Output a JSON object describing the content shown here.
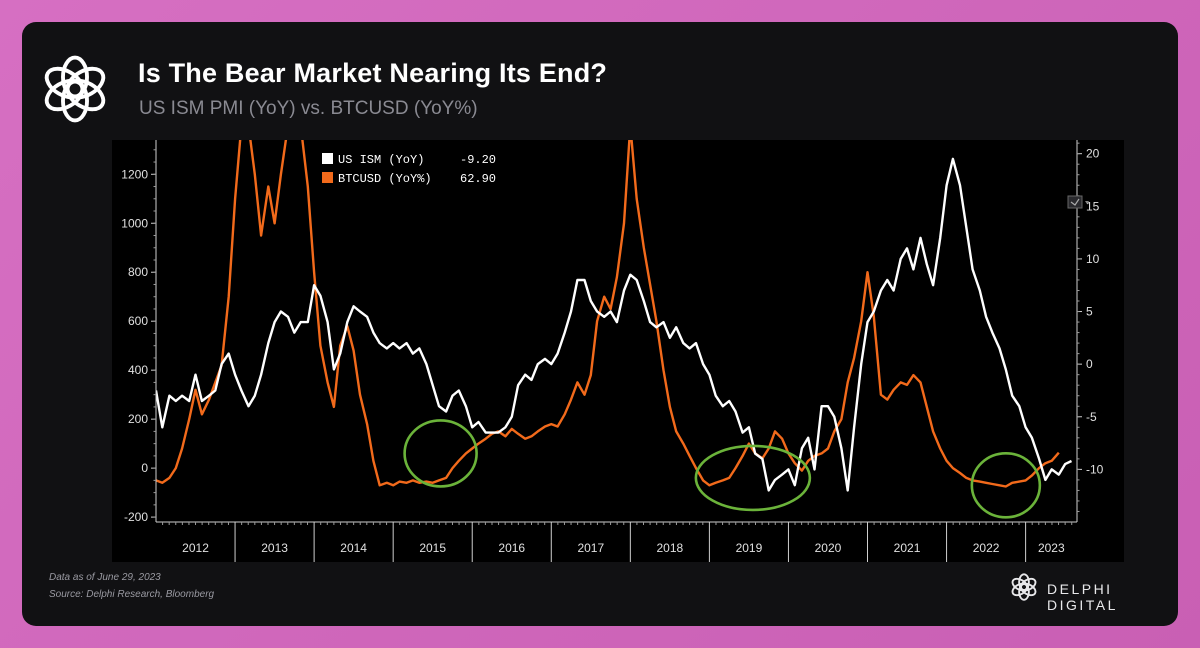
{
  "header": {
    "title": "Is The Bear Market Nearing Its End?",
    "subtitle": "US ISM PMI (YoY) vs. BTCUSD (YoY%)",
    "logo_icon": "delphi-flower-logo-icon"
  },
  "footer": {
    "note_date": "Data as of June 29, 2023",
    "note_source": "Source: Delphi Research, Bloomberg",
    "brand_name": "DELPHI DIGITAL",
    "brand_icon": "delphi-flower-logo-icon"
  },
  "colors": {
    "ism": "#ffffff",
    "btc": "#f26a1b",
    "highlight": "#6bb33a",
    "plot_bg": "#000000",
    "card_bg": "#111113",
    "page_bg": "#d66fc2"
  },
  "chart_data": {
    "type": "line",
    "x_labels": [
      "2012",
      "2013",
      "2014",
      "2015",
      "2016",
      "2017",
      "2018",
      "2019",
      "2020",
      "2021",
      "2022",
      "2023"
    ],
    "left_axis": {
      "ticks": [
        -200,
        0,
        200,
        400,
        600,
        800,
        1000,
        1200
      ],
      "range": [
        -220,
        1340
      ]
    },
    "right_axis": {
      "ticks": [
        -10,
        -5,
        0,
        5,
        10,
        15,
        20
      ],
      "range": [
        -15,
        21.3
      ]
    },
    "legend": {
      "placement": "top-left",
      "items": [
        {
          "label": "US ISM (YoY)",
          "value": "-9.20",
          "color": "#ffffff"
        },
        {
          "label": "BTCUSD (YoY%)",
          "value": "62.90",
          "color": "#f26a1b"
        }
      ]
    },
    "grid": false,
    "series": [
      {
        "name": "BTCUSD (YoY%)",
        "axis": "left",
        "points": [
          [
            2012.0,
            -50
          ],
          [
            2012.08,
            -60
          ],
          [
            2012.17,
            -40
          ],
          [
            2012.25,
            0
          ],
          [
            2012.33,
            80
          ],
          [
            2012.42,
            200
          ],
          [
            2012.5,
            320
          ],
          [
            2012.58,
            220
          ],
          [
            2012.67,
            280
          ],
          [
            2012.75,
            350
          ],
          [
            2012.83,
            420
          ],
          [
            2012.92,
            700
          ],
          [
            2013.0,
            1100
          ],
          [
            2013.08,
            1400
          ],
          [
            2013.17,
            1400
          ],
          [
            2013.25,
            1200
          ],
          [
            2013.33,
            950
          ],
          [
            2013.42,
            1150
          ],
          [
            2013.5,
            1000
          ],
          [
            2013.58,
            1200
          ],
          [
            2013.67,
            1400
          ],
          [
            2013.75,
            1400
          ],
          [
            2013.83,
            1400
          ],
          [
            2013.92,
            1150
          ],
          [
            2014.0,
            800
          ],
          [
            2014.08,
            500
          ],
          [
            2014.17,
            350
          ],
          [
            2014.25,
            250
          ],
          [
            2014.33,
            500
          ],
          [
            2014.42,
            580
          ],
          [
            2014.5,
            480
          ],
          [
            2014.58,
            300
          ],
          [
            2014.67,
            180
          ],
          [
            2014.75,
            30
          ],
          [
            2014.83,
            -70
          ],
          [
            2014.92,
            -60
          ],
          [
            2015.0,
            -70
          ],
          [
            2015.08,
            -55
          ],
          [
            2015.17,
            -60
          ],
          [
            2015.25,
            -50
          ],
          [
            2015.33,
            -60
          ],
          [
            2015.42,
            -55
          ],
          [
            2015.5,
            -60
          ],
          [
            2015.58,
            -50
          ],
          [
            2015.67,
            -40
          ],
          [
            2015.75,
            0
          ],
          [
            2015.83,
            30
          ],
          [
            2015.92,
            60
          ],
          [
            2016.0,
            80
          ],
          [
            2016.08,
            100
          ],
          [
            2016.17,
            120
          ],
          [
            2016.25,
            140
          ],
          [
            2016.33,
            150
          ],
          [
            2016.42,
            130
          ],
          [
            2016.5,
            160
          ],
          [
            2016.58,
            140
          ],
          [
            2016.67,
            120
          ],
          [
            2016.75,
            130
          ],
          [
            2016.83,
            150
          ],
          [
            2016.92,
            170
          ],
          [
            2017.0,
            180
          ],
          [
            2017.08,
            170
          ],
          [
            2017.17,
            220
          ],
          [
            2017.25,
            280
          ],
          [
            2017.33,
            350
          ],
          [
            2017.42,
            300
          ],
          [
            2017.5,
            380
          ],
          [
            2017.58,
            600
          ],
          [
            2017.67,
            700
          ],
          [
            2017.75,
            650
          ],
          [
            2017.83,
            780
          ],
          [
            2017.92,
            1000
          ],
          [
            2018.0,
            1400
          ],
          [
            2018.08,
            1100
          ],
          [
            2018.17,
            900
          ],
          [
            2018.25,
            750
          ],
          [
            2018.33,
            600
          ],
          [
            2018.42,
            400
          ],
          [
            2018.5,
            250
          ],
          [
            2018.58,
            150
          ],
          [
            2018.67,
            100
          ],
          [
            2018.75,
            50
          ],
          [
            2018.83,
            0
          ],
          [
            2018.92,
            -50
          ],
          [
            2019.0,
            -70
          ],
          [
            2019.08,
            -60
          ],
          [
            2019.17,
            -50
          ],
          [
            2019.25,
            -40
          ],
          [
            2019.33,
            0
          ],
          [
            2019.42,
            50
          ],
          [
            2019.5,
            100
          ],
          [
            2019.58,
            60
          ],
          [
            2019.67,
            40
          ],
          [
            2019.75,
            80
          ],
          [
            2019.83,
            150
          ],
          [
            2019.92,
            120
          ],
          [
            2020.0,
            60
          ],
          [
            2020.08,
            20
          ],
          [
            2020.17,
            -10
          ],
          [
            2020.25,
            30
          ],
          [
            2020.33,
            50
          ],
          [
            2020.42,
            60
          ],
          [
            2020.5,
            80
          ],
          [
            2020.58,
            150
          ],
          [
            2020.67,
            200
          ],
          [
            2020.75,
            350
          ],
          [
            2020.83,
            450
          ],
          [
            2020.92,
            600
          ],
          [
            2021.0,
            800
          ],
          [
            2021.08,
            620
          ],
          [
            2021.17,
            300
          ],
          [
            2021.25,
            280
          ],
          [
            2021.33,
            320
          ],
          [
            2021.42,
            350
          ],
          [
            2021.5,
            340
          ],
          [
            2021.58,
            380
          ],
          [
            2021.67,
            350
          ],
          [
            2021.75,
            250
          ],
          [
            2021.83,
            150
          ],
          [
            2021.92,
            80
          ],
          [
            2022.0,
            30
          ],
          [
            2022.08,
            0
          ],
          [
            2022.17,
            -20
          ],
          [
            2022.25,
            -40
          ],
          [
            2022.33,
            -50
          ],
          [
            2022.42,
            -55
          ],
          [
            2022.5,
            -60
          ],
          [
            2022.58,
            -65
          ],
          [
            2022.67,
            -70
          ],
          [
            2022.75,
            -75
          ],
          [
            2022.83,
            -60
          ],
          [
            2022.92,
            -55
          ],
          [
            2023.0,
            -50
          ],
          [
            2023.08,
            -30
          ],
          [
            2023.17,
            0
          ],
          [
            2023.25,
            20
          ],
          [
            2023.33,
            30
          ],
          [
            2023.42,
            62.9
          ]
        ]
      },
      {
        "name": "US ISM (YoY)",
        "axis": "right",
        "points": [
          [
            2012.0,
            -2.5
          ],
          [
            2012.08,
            -6
          ],
          [
            2012.17,
            -3
          ],
          [
            2012.25,
            -3.5
          ],
          [
            2012.33,
            -3
          ],
          [
            2012.42,
            -3.5
          ],
          [
            2012.5,
            -1
          ],
          [
            2012.58,
            -3.5
          ],
          [
            2012.67,
            -3
          ],
          [
            2012.75,
            -2.5
          ],
          [
            2012.83,
            0
          ],
          [
            2012.92,
            1
          ],
          [
            2013.0,
            -1
          ],
          [
            2013.08,
            -2.5
          ],
          [
            2013.17,
            -4
          ],
          [
            2013.25,
            -3
          ],
          [
            2013.33,
            -1
          ],
          [
            2013.42,
            2
          ],
          [
            2013.5,
            4
          ],
          [
            2013.58,
            5
          ],
          [
            2013.67,
            4.5
          ],
          [
            2013.75,
            3
          ],
          [
            2013.83,
            4
          ],
          [
            2013.92,
            4
          ],
          [
            2014.0,
            7.5
          ],
          [
            2014.08,
            6.5
          ],
          [
            2014.17,
            4
          ],
          [
            2014.25,
            -0.5
          ],
          [
            2014.33,
            1
          ],
          [
            2014.42,
            4
          ],
          [
            2014.5,
            5.5
          ],
          [
            2014.58,
            5
          ],
          [
            2014.67,
            4.5
          ],
          [
            2014.75,
            3
          ],
          [
            2014.83,
            2
          ],
          [
            2014.92,
            1.5
          ],
          [
            2015.0,
            2
          ],
          [
            2015.08,
            1.5
          ],
          [
            2015.17,
            2
          ],
          [
            2015.25,
            1
          ],
          [
            2015.33,
            1.5
          ],
          [
            2015.42,
            0
          ],
          [
            2015.5,
            -2
          ],
          [
            2015.58,
            -4
          ],
          [
            2015.67,
            -4.5
          ],
          [
            2015.75,
            -3
          ],
          [
            2015.83,
            -2.5
          ],
          [
            2015.92,
            -4
          ],
          [
            2016.0,
            -6
          ],
          [
            2016.08,
            -5.5
          ],
          [
            2016.17,
            -6.5
          ],
          [
            2016.25,
            -6.5
          ],
          [
            2016.33,
            -6.5
          ],
          [
            2016.42,
            -6
          ],
          [
            2016.5,
            -5
          ],
          [
            2016.58,
            -2
          ],
          [
            2016.67,
            -1
          ],
          [
            2016.75,
            -1.5
          ],
          [
            2016.83,
            0
          ],
          [
            2016.92,
            0.5
          ],
          [
            2017.0,
            0
          ],
          [
            2017.08,
            1
          ],
          [
            2017.17,
            3
          ],
          [
            2017.25,
            5
          ],
          [
            2017.33,
            8
          ],
          [
            2017.42,
            8
          ],
          [
            2017.5,
            6
          ],
          [
            2017.58,
            5
          ],
          [
            2017.67,
            4.5
          ],
          [
            2017.75,
            5
          ],
          [
            2017.83,
            4
          ],
          [
            2017.92,
            7
          ],
          [
            2018.0,
            8.5
          ],
          [
            2018.08,
            8
          ],
          [
            2018.17,
            6
          ],
          [
            2018.25,
            4
          ],
          [
            2018.33,
            3.5
          ],
          [
            2018.42,
            4
          ],
          [
            2018.5,
            2.5
          ],
          [
            2018.58,
            3.5
          ],
          [
            2018.67,
            2
          ],
          [
            2018.75,
            1.5
          ],
          [
            2018.83,
            2
          ],
          [
            2018.92,
            0
          ],
          [
            2019.0,
            -1
          ],
          [
            2019.08,
            -3
          ],
          [
            2019.17,
            -4
          ],
          [
            2019.25,
            -3.5
          ],
          [
            2019.33,
            -4.5
          ],
          [
            2019.42,
            -6.5
          ],
          [
            2019.5,
            -6
          ],
          [
            2019.58,
            -8.5
          ],
          [
            2019.67,
            -9
          ],
          [
            2019.75,
            -12
          ],
          [
            2019.83,
            -11
          ],
          [
            2019.92,
            -10.5
          ],
          [
            2020.0,
            -10
          ],
          [
            2020.08,
            -11.5
          ],
          [
            2020.17,
            -8
          ],
          [
            2020.25,
            -7
          ],
          [
            2020.33,
            -10
          ],
          [
            2020.42,
            -4
          ],
          [
            2020.5,
            -4
          ],
          [
            2020.58,
            -5
          ],
          [
            2020.67,
            -8
          ],
          [
            2020.75,
            -12
          ],
          [
            2020.83,
            -6
          ],
          [
            2020.92,
            0
          ],
          [
            2021.0,
            4
          ],
          [
            2021.08,
            5
          ],
          [
            2021.17,
            7
          ],
          [
            2021.25,
            8
          ],
          [
            2021.33,
            7
          ],
          [
            2021.42,
            10
          ],
          [
            2021.5,
            11
          ],
          [
            2021.58,
            9
          ],
          [
            2021.67,
            12
          ],
          [
            2021.75,
            9.5
          ],
          [
            2021.83,
            7.5
          ],
          [
            2021.92,
            12
          ],
          [
            2022.0,
            17
          ],
          [
            2022.08,
            19.5
          ],
          [
            2022.17,
            17
          ],
          [
            2022.25,
            13
          ],
          [
            2022.33,
            9
          ],
          [
            2022.42,
            7
          ],
          [
            2022.5,
            4.5
          ],
          [
            2022.58,
            3
          ],
          [
            2022.67,
            1.5
          ],
          [
            2022.75,
            -0.5
          ],
          [
            2022.83,
            -3
          ],
          [
            2022.92,
            -4
          ],
          [
            2023.0,
            -6
          ],
          [
            2023.08,
            -7
          ],
          [
            2023.17,
            -9
          ],
          [
            2023.25,
            -11
          ],
          [
            2023.33,
            -10
          ],
          [
            2023.42,
            -10.5
          ],
          [
            2023.5,
            -9.5
          ],
          [
            2023.58,
            -9.2
          ]
        ]
      }
    ],
    "highlights": [
      {
        "x": 2015.6,
        "y": 60
      },
      {
        "x": 2019.55,
        "y": -40
      },
      {
        "x": 2022.75,
        "y": -70
      }
    ]
  }
}
